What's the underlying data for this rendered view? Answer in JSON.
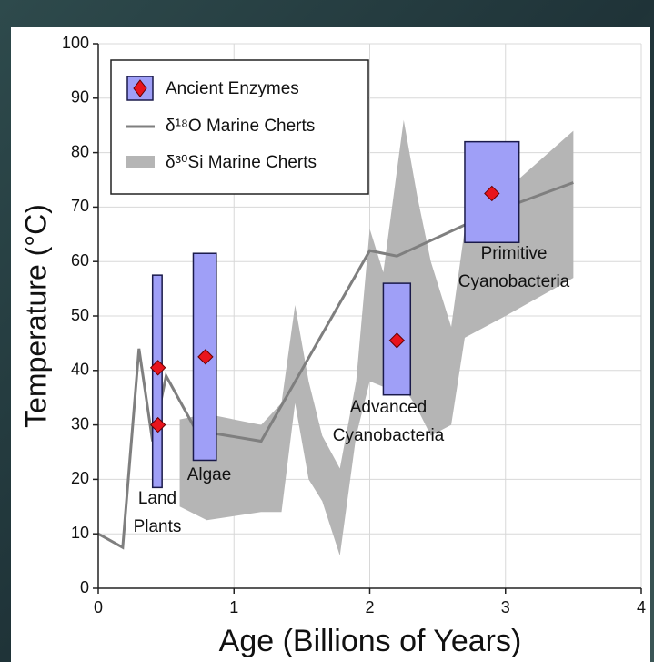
{
  "chart_data": {
    "type": "line",
    "xlabel": "Age (Billions of Years)",
    "ylabel": "Temperature (°C)",
    "xlim": [
      0,
      4
    ],
    "xticks": [
      0,
      1,
      2,
      3,
      4
    ],
    "ylim": [
      0,
      100
    ],
    "yticks": [
      0,
      10,
      20,
      30,
      40,
      50,
      60,
      70,
      80,
      90,
      100
    ],
    "grid": true,
    "legend": "upper left",
    "series": [
      {
        "name": "Ancient Enzymes",
        "color": "#9f9ff7",
        "marker_color": "#e8141c",
        "groups": [
          {
            "label": [
              "Land",
              "Plants"
            ],
            "x": 0.44,
            "x_range": [
              0.4,
              0.47
            ],
            "range": [
              18.5,
              57.5
            ],
            "values": [
              40.5,
              30
            ]
          },
          {
            "label": [
              "Algae"
            ],
            "x": 0.79,
            "x_range": [
              0.7,
              0.87
            ],
            "range": [
              23.5,
              61.5
            ],
            "values": [
              42.5
            ]
          },
          {
            "label": [
              "Advanced",
              "Cyanobacteria"
            ],
            "x": 2.2,
            "x_range": [
              2.1,
              2.3
            ],
            "range": [
              35.5,
              56
            ],
            "values": [
              45.5
            ]
          },
          {
            "label": [
              "Primitive",
              "Cyanobacteria"
            ],
            "x": 2.9,
            "x_range": [
              2.7,
              3.1
            ],
            "range": [
              63.5,
              82
            ],
            "values": [
              72.5
            ]
          }
        ]
      },
      {
        "name": "δ¹⁸O Marine Cherts",
        "color": "#7f7f7f",
        "x": [
          0,
          0.18,
          0.3,
          0.4,
          0.5,
          0.72,
          1.2,
          2.0,
          2.2,
          2.9,
          3.5
        ],
        "values": [
          10,
          7.5,
          44,
          27,
          39,
          29,
          27,
          62,
          61,
          69,
          74.5
        ]
      },
      {
        "name": "δ³⁰Si Marine Cherts",
        "color": "#b5b5b5",
        "x": [
          0.6,
          0.8,
          1.2,
          1.35,
          1.45,
          1.55,
          1.65,
          1.78,
          1.9,
          2.0,
          2.1,
          2.25,
          2.35,
          2.45,
          2.6,
          2.7,
          3.0,
          3.5
        ],
        "upper": [
          31,
          32,
          30,
          34,
          52,
          38,
          28,
          22,
          38,
          66,
          58,
          86,
          72,
          60,
          48,
          66,
          73,
          84
        ],
        "lower": [
          15,
          12.5,
          14,
          14,
          34,
          20,
          16,
          6,
          28,
          38,
          37,
          37,
          33,
          28,
          30,
          46,
          50,
          57
        ]
      }
    ]
  }
}
